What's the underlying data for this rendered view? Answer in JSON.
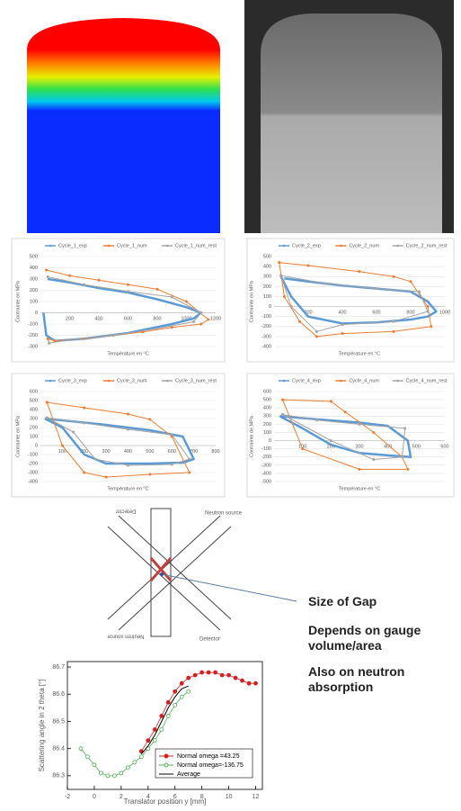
{
  "chart_data": [
    {
      "type": "line",
      "x_label": "Température en °C",
      "y_label": "Contrainte en MPa",
      "xlim": [
        0,
        1200
      ],
      "ylim": [
        -300,
        500
      ],
      "xticks": [
        200,
        400,
        600,
        800,
        1000,
        1200
      ],
      "yticks": [
        -300,
        -200,
        -100,
        0,
        100,
        200,
        300,
        400,
        500
      ],
      "grid": true,
      "legend": "top",
      "series": [
        {
          "name": "Cycle_1_exp",
          "color": "#5b9bd5",
          "marker": "none",
          "x": [
            20,
            40,
            100,
            300,
            600,
            900,
            1050,
            1100,
            1000,
            800,
            600,
            400,
            200,
            50
          ],
          "values": [
            0,
            -200,
            -250,
            -230,
            -180,
            -100,
            -50,
            0,
            50,
            120,
            180,
            220,
            270,
            300
          ]
        },
        {
          "name": "Cycle_1_num",
          "color": "#ed7d31",
          "marker": "dot",
          "x": [
            40,
            200,
            400,
            600,
            800,
            1000,
            1150,
            1100,
            900,
            700,
            500,
            300,
            100,
            50,
            60
          ],
          "values": [
            380,
            330,
            290,
            250,
            210,
            100,
            -60,
            -100,
            -130,
            -170,
            -200,
            -230,
            -250,
            -230,
            -270
          ]
        },
        {
          "name": "Cycle_1_num_rest",
          "color": "#a5a5a5",
          "marker": "dot",
          "x": [
            50,
            300,
            600,
            900,
            1100,
            1050,
            800,
            500,
            200,
            60
          ],
          "values": [
            320,
            250,
            190,
            140,
            0,
            -80,
            -140,
            -200,
            -240,
            -270
          ]
        }
      ]
    },
    {
      "type": "line",
      "x_label": "Température en °C",
      "y_label": "Contrainte en MPa",
      "xlim": [
        0,
        1000
      ],
      "ylim": [
        -400,
        500
      ],
      "xticks": [
        200,
        400,
        600,
        800,
        1000
      ],
      "yticks": [
        -400,
        -300,
        -200,
        -100,
        0,
        100,
        200,
        300,
        400,
        500
      ],
      "grid": true,
      "legend": "top",
      "series": [
        {
          "name": "Cycle_2_exp",
          "color": "#5b9bd5",
          "marker": "none",
          "x": [
            40,
            100,
            200,
            400,
            600,
            800,
            900,
            950,
            900,
            800,
            600,
            400,
            200,
            60
          ],
          "values": [
            300,
            100,
            -100,
            -170,
            -160,
            -130,
            -100,
            -50,
            50,
            150,
            180,
            210,
            250,
            280
          ]
        },
        {
          "name": "Cycle_2_num",
          "color": "#ed7d31",
          "marker": "dot",
          "x": [
            30,
            200,
            500,
            700,
            800,
            900,
            920,
            700,
            400,
            250,
            150,
            60,
            30
          ],
          "values": [
            440,
            410,
            350,
            300,
            250,
            0,
            -200,
            -250,
            -270,
            -300,
            -150,
            100,
            440
          ]
        },
        {
          "name": "Cycle_2_num_rest",
          "color": "#a5a5a5",
          "marker": "dot",
          "x": [
            40,
            300,
            600,
            850,
            900,
            700,
            400,
            250,
            100,
            40
          ],
          "values": [
            310,
            230,
            180,
            150,
            -50,
            -150,
            -180,
            -250,
            0,
            310
          ]
        }
      ]
    },
    {
      "type": "line",
      "x_label": "Température en °C",
      "y_label": "Contrainte en MPa",
      "xlim": [
        0,
        800
      ],
      "ylim": [
        -400,
        600
      ],
      "xticks": [
        100,
        200,
        300,
        400,
        500,
        600,
        700,
        800
      ],
      "yticks": [
        -400,
        -300,
        -200,
        -100,
        0,
        100,
        200,
        300,
        400,
        500,
        600
      ],
      "grid": true,
      "legend": "top",
      "series": [
        {
          "name": "Cycle_3_exp",
          "color": "#5b9bd5",
          "marker": "none",
          "x": [
            20,
            100,
            200,
            300,
            500,
            650,
            700,
            650,
            500,
            300,
            100,
            20
          ],
          "values": [
            300,
            200,
            -100,
            -200,
            -200,
            -190,
            -150,
            100,
            170,
            230,
            280,
            300
          ]
        },
        {
          "name": "Cycle_3_num",
          "color": "#ed7d31",
          "marker": "dot",
          "x": [
            30,
            200,
            400,
            500,
            600,
            680,
            500,
            300,
            200,
            100,
            30
          ],
          "values": [
            480,
            420,
            350,
            290,
            100,
            -300,
            -320,
            -350,
            -300,
            0,
            480
          ]
        },
        {
          "name": "Cycle_3_num_rest",
          "color": "#a5a5a5",
          "marker": "dot",
          "x": [
            30,
            150,
            250,
            400,
            600,
            680,
            600,
            400,
            200,
            30
          ],
          "values": [
            310,
            150,
            -150,
            -220,
            -210,
            -150,
            120,
            180,
            250,
            310
          ]
        }
      ]
    },
    {
      "type": "line",
      "x_label": "Température en °C",
      "y_label": "Contrainte de MPa",
      "xlim": [
        0,
        600
      ],
      "ylim": [
        -500,
        600
      ],
      "xticks": [
        100,
        200,
        300,
        400,
        500,
        600
      ],
      "yticks": [
        -500,
        -400,
        -300,
        -200,
        -100,
        0,
        100,
        200,
        300,
        400,
        500,
        600
      ],
      "grid": true,
      "legend": "top",
      "series": [
        {
          "name": "Cycle_4_exp",
          "color": "#5b9bd5",
          "marker": "none",
          "x": [
            20,
            100,
            200,
            300,
            400,
            480,
            470,
            400,
            300,
            150,
            20
          ],
          "values": [
            300,
            150,
            -50,
            -150,
            -180,
            -200,
            0,
            180,
            220,
            260,
            300
          ]
        },
        {
          "name": "Cycle_4_num",
          "color": "#ed7d31",
          "marker": "dot",
          "x": [
            30,
            200,
            250,
            350,
            450,
            470,
            300,
            100,
            30
          ],
          "values": [
            500,
            480,
            350,
            100,
            -200,
            -350,
            -350,
            -100,
            500
          ]
        },
        {
          "name": "Cycle_4_num_rest",
          "color": "#a5a5a5",
          "marker": "dot",
          "x": [
            30,
            150,
            300,
            460,
            450,
            350,
            200,
            30
          ],
          "values": [
            320,
            250,
            200,
            150,
            -200,
            -230,
            0,
            320
          ]
        }
      ]
    },
    {
      "type": "line",
      "x_label": "Translator position y [mm]",
      "y_label": "Scattering angle in 2 theta [°]",
      "xlim": [
        -2,
        12.5
      ],
      "ylim": [
        86.25,
        86.72
      ],
      "xticks": [
        -2,
        0,
        2,
        4,
        6,
        8,
        10,
        12
      ],
      "yticks": [
        86.3,
        86.4,
        86.5,
        86.6,
        86.7
      ],
      "grid": false,
      "legend": "lower right",
      "series": [
        {
          "name": "Normal omega =43.25",
          "color": "#d62020",
          "marker": "filled",
          "x": [
            3.5,
            4,
            4.5,
            5,
            5.5,
            6,
            6.5,
            7,
            7.5,
            8,
            8.5,
            9,
            9.5,
            10,
            10.5,
            11,
            11.5,
            12
          ],
          "values": [
            86.39,
            86.43,
            86.47,
            86.52,
            86.57,
            86.61,
            86.64,
            86.66,
            86.67,
            86.68,
            86.68,
            86.68,
            86.67,
            86.67,
            86.66,
            86.65,
            86.64,
            86.64
          ]
        },
        {
          "name": "Normal omega=-136.75",
          "color": "#4caf50",
          "marker": "open",
          "x": [
            -1,
            -0.5,
            0,
            0.5,
            1,
            1.5,
            2,
            2.5,
            3,
            3.5,
            4,
            4.5,
            5,
            5.5,
            6,
            6.5,
            7
          ],
          "values": [
            86.4,
            86.37,
            86.34,
            86.31,
            86.3,
            86.3,
            86.31,
            86.33,
            86.35,
            86.37,
            86.4,
            86.43,
            86.47,
            86.52,
            86.56,
            86.59,
            86.61
          ]
        },
        {
          "name": "Average",
          "color": "#000000",
          "marker": "none",
          "x": [
            3.5,
            4,
            4.5,
            5,
            5.5,
            6,
            6.5,
            7
          ],
          "values": [
            86.38,
            86.41,
            86.45,
            86.5,
            86.55,
            86.59,
            86.62,
            86.63
          ]
        }
      ]
    }
  ],
  "diagram": {
    "labels": [
      "Detector",
      "Neutron source",
      "Neutron source",
      "Detector"
    ]
  },
  "notes": [
    "Size of Gap",
    "Depends on gauge volume/area",
    "Also on neutron absorption"
  ]
}
